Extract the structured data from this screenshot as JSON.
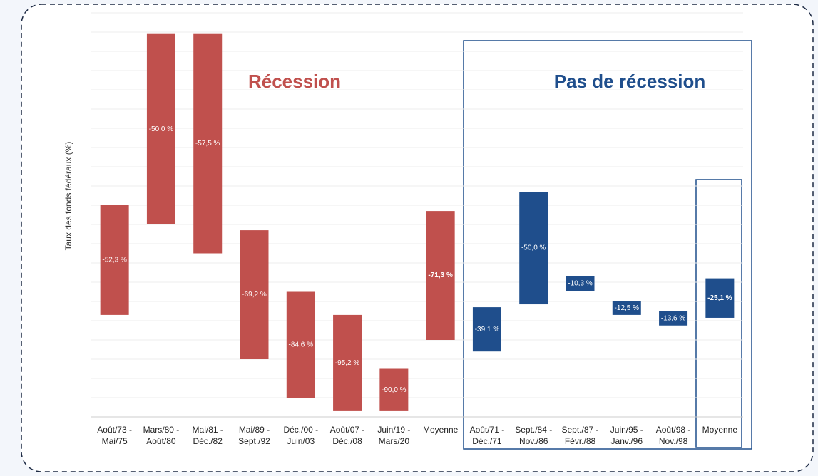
{
  "chart_data": {
    "type": "floating-bar",
    "y_label": "Taux des fonds fédéraux (%)",
    "annotations": [
      "Récession",
      "Pas de récession"
    ],
    "ylim": [
      0,
      21
    ],
    "yticks": [
      0,
      1,
      2,
      3,
      4,
      5,
      6,
      7,
      8,
      9,
      10,
      11,
      12,
      13,
      14,
      15,
      16,
      17,
      18,
      19,
      20,
      21
    ],
    "grid": true,
    "series": [
      {
        "name": "Récession",
        "color": "#c0504d",
        "categories": [
          [
            "Août/73 -",
            "Mai/75"
          ],
          [
            "Mars/80 -",
            "Août/80"
          ],
          [
            "Mai/81 -",
            "Déc./82"
          ],
          [
            "Mai/89 -",
            "Sept./92"
          ],
          [
            "Déc./00 -",
            "Juin/03"
          ],
          [
            "Août/07 -",
            "Déc./08"
          ],
          [
            "Juin/19 -",
            "Mars/20"
          ],
          [
            "Moyenne"
          ]
        ],
        "high": [
          11.0,
          19.9,
          19.9,
          9.7,
          6.5,
          5.3,
          2.5,
          10.7
        ],
        "low": [
          5.3,
          10.0,
          8.5,
          3.0,
          1.0,
          0.3,
          0.3,
          4.0
        ],
        "values": [
          -52.3,
          -50.0,
          -57.5,
          -69.2,
          -84.6,
          -95.2,
          -90.0,
          -71.3
        ],
        "value_labels": [
          "-52,3 %",
          "-50,0 %",
          "-57,5 %",
          "-69,2 %",
          "-84,6 %",
          "-95,2 %",
          "-90,0 %",
          "-71,3 %"
        ]
      },
      {
        "name": "Pas de récession",
        "color": "#1f4e8c",
        "categories": [
          [
            "Août/71 -",
            "Déc./71"
          ],
          [
            "Sept./84 -",
            "Nov./86"
          ],
          [
            "Sept./87 -",
            "Févr./88"
          ],
          [
            "Juin/95 -",
            "Janv./96"
          ],
          [
            "Août/98 -",
            "Nov./98"
          ],
          [
            "Moyenne"
          ]
        ],
        "high": [
          5.7,
          11.7,
          7.3,
          6.0,
          5.5,
          7.2
        ],
        "low": [
          3.4,
          5.85,
          6.55,
          5.3,
          4.75,
          5.15
        ],
        "values": [
          -39.1,
          -50.0,
          -10.3,
          -12.5,
          -13.6,
          -25.1
        ],
        "value_labels": [
          "-39,1 %",
          "-50,0 %",
          "-10,3 %",
          "-12,5 %",
          "-13,6 %",
          "-25,1 %"
        ]
      }
    ]
  }
}
